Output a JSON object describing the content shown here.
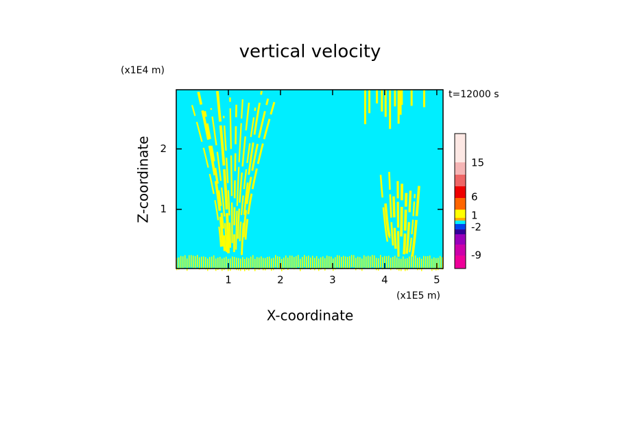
{
  "chart_data": {
    "type": "contour",
    "title": "vertical velocity",
    "xlabel": "X-coordinate",
    "ylabel": "Z-coordinate",
    "xunit": "(x1E5 m)",
    "yunit": "(x1E4 m)",
    "time_label": "t=12000 s",
    "xlim": [
      0,
      5.12
    ],
    "xticks": [
      1,
      2,
      3,
      4,
      5
    ],
    "ylim": [
      0.02,
      2.98
    ],
    "yticks": [
      1,
      2
    ],
    "field_color": "#00eeff",
    "feature_color": "#ffff00",
    "colorbar": {
      "ticks": [
        -9,
        -2,
        1,
        6,
        15
      ],
      "colors": [
        "#ee0099",
        "#cc00aa",
        "#9900bb",
        "#330099",
        "#0044ee",
        "#00eeff",
        "#ffaa00",
        "#ffff00",
        "#ff6600",
        "#ee0000",
        "#ee6666",
        "#f5b5b5",
        "#fde8e4"
      ]
    }
  }
}
